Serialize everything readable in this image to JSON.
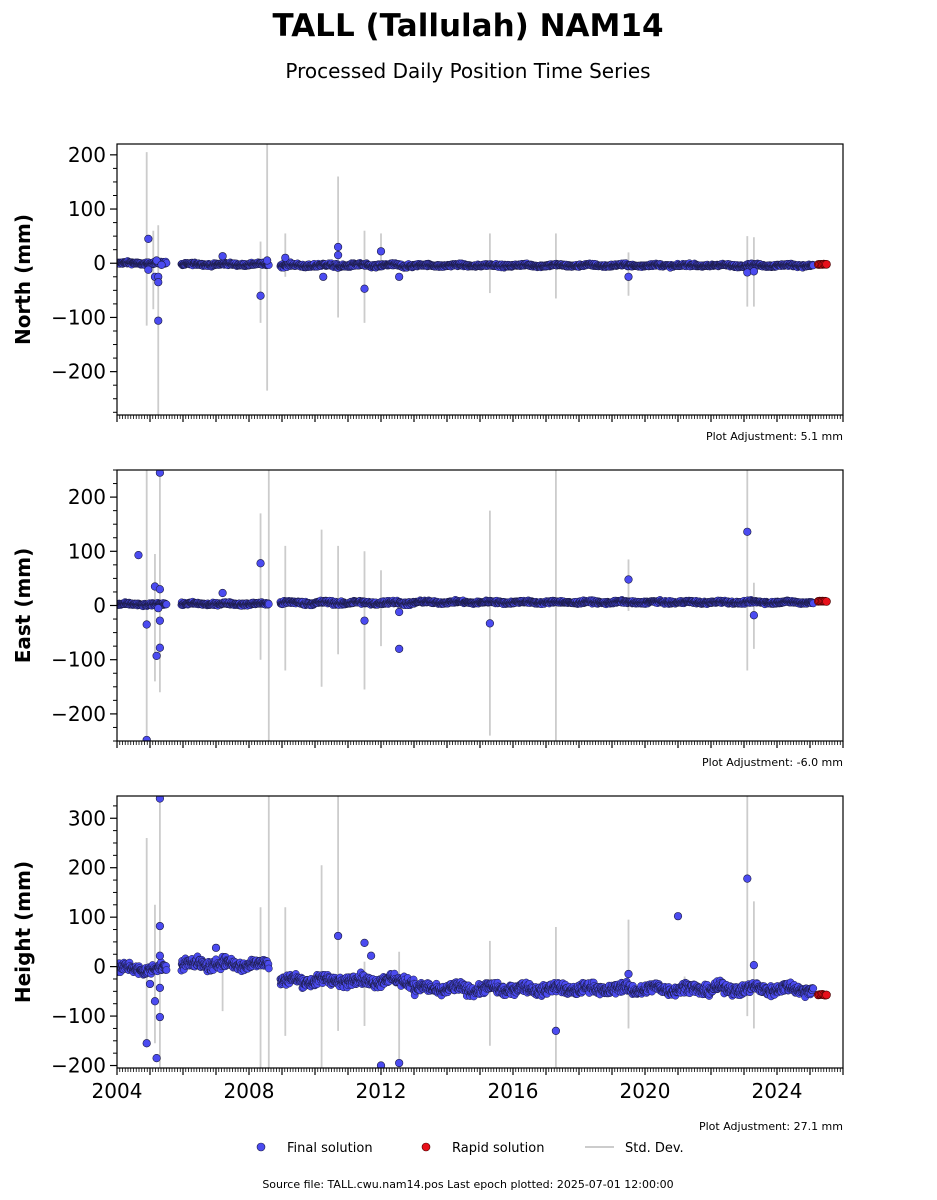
{
  "figure": {
    "title": "TALL (Tallulah) NAM14",
    "subtitle": "Processed Daily Position Time Series",
    "source_note": "Source file: TALL.cwu.nam14.pos  Last epoch plotted: 2025-07-01 12:00:00"
  },
  "legend": {
    "placement": "bottom-center",
    "items": [
      {
        "label": "Final solution",
        "color": "#4b4bf0",
        "marker": "circle"
      },
      {
        "label": "Rapid solution",
        "color": "#e8101a",
        "marker": "circle"
      },
      {
        "label": "Std. Dev.",
        "color": "#cccccc",
        "marker": "line"
      }
    ]
  },
  "colors": {
    "final": "#4b4bf0",
    "final_edge": "#1a1a40",
    "rapid": "#e8101a",
    "rapid_edge": "#400000",
    "stddev": "#cccccc"
  },
  "chart_data": [
    {
      "type": "scatter",
      "name": "north",
      "ylabel": "North (mm)",
      "adjustment": "Plot Adjustment: 5.1 mm",
      "xlim": [
        2004,
        2026
      ],
      "ylim": [
        -280,
        220
      ],
      "yticks": [
        -200,
        -100,
        0,
        100,
        200
      ],
      "ytick_labels": [
        "−200",
        "−100",
        "0",
        "100",
        "200"
      ],
      "dense_segments": [
        [
          2004.0,
          2005.5,
          0,
          3
        ],
        [
          2005.95,
          2008.6,
          -2,
          3
        ],
        [
          2008.95,
          2013.0,
          -4,
          4
        ],
        [
          2013.0,
          2025.1,
          -4,
          3
        ]
      ],
      "rapid_segments": [
        [
          2025.25,
          2025.5,
          -2,
          1
        ]
      ],
      "outliers": [
        {
          "x": 2004.95,
          "y": 45
        },
        {
          "x": 2004.95,
          "y": -12
        },
        {
          "x": 2005.15,
          "y": -25
        },
        {
          "x": 2005.2,
          "y": 5
        },
        {
          "x": 2005.25,
          "y": -25
        },
        {
          "x": 2005.25,
          "y": -35
        },
        {
          "x": 2005.25,
          "y": -106
        },
        {
          "x": 2005.35,
          "y": -3
        },
        {
          "x": 2007.2,
          "y": 13
        },
        {
          "x": 2008.35,
          "y": -60
        },
        {
          "x": 2008.55,
          "y": 5
        },
        {
          "x": 2009.1,
          "y": 10
        },
        {
          "x": 2010.25,
          "y": -25
        },
        {
          "x": 2010.7,
          "y": 30
        },
        {
          "x": 2010.7,
          "y": 15
        },
        {
          "x": 2011.5,
          "y": -47
        },
        {
          "x": 2012.0,
          "y": 22
        },
        {
          "x": 2012.55,
          "y": -25
        },
        {
          "x": 2019.5,
          "y": -25
        },
        {
          "x": 2023.1,
          "y": -17
        },
        {
          "x": 2023.3,
          "y": -15
        }
      ],
      "error_bars": [
        {
          "x": 2004.9,
          "lo": -115,
          "hi": 205
        },
        {
          "x": 2005.1,
          "lo": -85,
          "hi": 60
        },
        {
          "x": 2005.25,
          "lo": -280,
          "hi": 70
        },
        {
          "x": 2008.35,
          "lo": -110,
          "hi": 40
        },
        {
          "x": 2008.55,
          "lo": -235,
          "hi": 220
        },
        {
          "x": 2009.1,
          "lo": -25,
          "hi": 55
        },
        {
          "x": 2010.7,
          "lo": -100,
          "hi": 160
        },
        {
          "x": 2011.5,
          "lo": -110,
          "hi": 60
        },
        {
          "x": 2012.0,
          "lo": -10,
          "hi": 55
        },
        {
          "x": 2015.3,
          "lo": -55,
          "hi": 55
        },
        {
          "x": 2017.3,
          "lo": -65,
          "hi": 55
        },
        {
          "x": 2019.5,
          "lo": -60,
          "hi": 20
        },
        {
          "x": 2023.1,
          "lo": -80,
          "hi": 50
        },
        {
          "x": 2023.3,
          "lo": -80,
          "hi": 48
        }
      ]
    },
    {
      "type": "scatter",
      "name": "east",
      "ylabel": "East (mm)",
      "adjustment": "Plot Adjustment: -6.0 mm",
      "xlim": [
        2004,
        2026
      ],
      "ylim": [
        -250,
        250
      ],
      "yticks": [
        -200,
        -100,
        0,
        100,
        200
      ],
      "ytick_labels": [
        "−200",
        "−100",
        "0",
        "100",
        "200"
      ],
      "dense_segments": [
        [
          2004.0,
          2005.5,
          2,
          3
        ],
        [
          2005.95,
          2008.6,
          3,
          3
        ],
        [
          2008.95,
          2013.0,
          5,
          4
        ],
        [
          2013.0,
          2025.1,
          6,
          3
        ]
      ],
      "rapid_segments": [
        [
          2025.25,
          2025.5,
          8,
          1
        ]
      ],
      "outliers": [
        {
          "x": 2004.65,
          "y": 93
        },
        {
          "x": 2004.9,
          "y": -35
        },
        {
          "x": 2004.9,
          "y": -248
        },
        {
          "x": 2005.15,
          "y": 35
        },
        {
          "x": 2005.2,
          "y": -93
        },
        {
          "x": 2005.25,
          "y": -5
        },
        {
          "x": 2005.3,
          "y": 245
        },
        {
          "x": 2005.3,
          "y": 30
        },
        {
          "x": 2005.3,
          "y": -28
        },
        {
          "x": 2005.3,
          "y": -78
        },
        {
          "x": 2007.2,
          "y": 23
        },
        {
          "x": 2008.35,
          "y": 78
        },
        {
          "x": 2011.5,
          "y": -28
        },
        {
          "x": 2012.55,
          "y": -80
        },
        {
          "x": 2012.55,
          "y": -12
        },
        {
          "x": 2015.3,
          "y": -33
        },
        {
          "x": 2019.5,
          "y": 48
        },
        {
          "x": 2023.1,
          "y": 136
        },
        {
          "x": 2023.3,
          "y": -18
        }
      ],
      "error_bars": [
        {
          "x": 2004.9,
          "lo": -250,
          "hi": 250
        },
        {
          "x": 2005.15,
          "lo": -140,
          "hi": 95
        },
        {
          "x": 2005.3,
          "lo": -160,
          "hi": 250
        },
        {
          "x": 2008.35,
          "lo": -100,
          "hi": 170
        },
        {
          "x": 2008.6,
          "lo": -250,
          "hi": 250
        },
        {
          "x": 2009.1,
          "lo": -120,
          "hi": 110
        },
        {
          "x": 2010.2,
          "lo": -150,
          "hi": 140
        },
        {
          "x": 2010.7,
          "lo": -90,
          "hi": 110
        },
        {
          "x": 2011.5,
          "lo": -155,
          "hi": 100
        },
        {
          "x": 2012.0,
          "lo": -75,
          "hi": 65
        },
        {
          "x": 2015.3,
          "lo": -240,
          "hi": 175
        },
        {
          "x": 2017.3,
          "lo": -250,
          "hi": 250
        },
        {
          "x": 2019.5,
          "lo": -10,
          "hi": 85
        },
        {
          "x": 2023.1,
          "lo": -120,
          "hi": 250
        },
        {
          "x": 2023.3,
          "lo": -80,
          "hi": 42
        }
      ]
    },
    {
      "type": "scatter",
      "name": "height",
      "ylabel": "Height (mm)",
      "adjustment": "Plot Adjustment: 27.1 mm",
      "xlim": [
        2004,
        2026
      ],
      "ylim": [
        -205,
        345
      ],
      "yticks": [
        -200,
        -100,
        0,
        100,
        200,
        300
      ],
      "ytick_labels": [
        "−200",
        "−100",
        "0",
        "100",
        "200",
        "300"
      ],
      "xticks": [
        2004,
        2008,
        2012,
        2016,
        2020,
        2024
      ],
      "xtick_labels": [
        "2004",
        "2008",
        "2012",
        "2016",
        "2020",
        "2024"
      ],
      "dense_segments": [
        [
          2004.0,
          2005.5,
          -5,
          12
        ],
        [
          2005.95,
          2008.6,
          5,
          12
        ],
        [
          2008.95,
          2013.0,
          -28,
          12
        ],
        [
          2013.0,
          2025.1,
          -45,
          12
        ]
      ],
      "rapid_segments": [
        [
          2025.25,
          2025.5,
          -57,
          2
        ]
      ],
      "outliers": [
        {
          "x": 2004.9,
          "y": -155
        },
        {
          "x": 2005.0,
          "y": -35
        },
        {
          "x": 2005.15,
          "y": -70
        },
        {
          "x": 2005.2,
          "y": -185
        },
        {
          "x": 2005.3,
          "y": 340
        },
        {
          "x": 2005.3,
          "y": 82
        },
        {
          "x": 2005.3,
          "y": 22
        },
        {
          "x": 2005.3,
          "y": -43
        },
        {
          "x": 2005.3,
          "y": -102
        },
        {
          "x": 2007.0,
          "y": 38
        },
        {
          "x": 2010.7,
          "y": 62
        },
        {
          "x": 2011.5,
          "y": 48
        },
        {
          "x": 2011.7,
          "y": 22
        },
        {
          "x": 2012.0,
          "y": -200
        },
        {
          "x": 2012.55,
          "y": -195
        },
        {
          "x": 2017.3,
          "y": -130
        },
        {
          "x": 2019.5,
          "y": -15
        },
        {
          "x": 2021.0,
          "y": 102
        },
        {
          "x": 2023.1,
          "y": 178
        },
        {
          "x": 2023.3,
          "y": 3
        }
      ],
      "error_bars": [
        {
          "x": 2004.9,
          "lo": -160,
          "hi": 260
        },
        {
          "x": 2005.15,
          "lo": -155,
          "hi": 125
        },
        {
          "x": 2005.3,
          "lo": -205,
          "hi": 345
        },
        {
          "x": 2007.2,
          "lo": -90,
          "hi": -10
        },
        {
          "x": 2008.35,
          "lo": -205,
          "hi": 120
        },
        {
          "x": 2008.6,
          "lo": -205,
          "hi": 345
        },
        {
          "x": 2009.1,
          "lo": -140,
          "hi": 120
        },
        {
          "x": 2010.2,
          "lo": -205,
          "hi": 205
        },
        {
          "x": 2010.7,
          "lo": -130,
          "hi": 345
        },
        {
          "x": 2011.5,
          "lo": -120,
          "hi": 10
        },
        {
          "x": 2012.55,
          "lo": -205,
          "hi": 30
        },
        {
          "x": 2015.3,
          "lo": -160,
          "hi": 52
        },
        {
          "x": 2017.3,
          "lo": -205,
          "hi": 80
        },
        {
          "x": 2019.5,
          "lo": -125,
          "hi": 95
        },
        {
          "x": 2021.2,
          "lo": -30,
          "hi": -20
        },
        {
          "x": 2023.1,
          "lo": -100,
          "hi": 345
        },
        {
          "x": 2023.3,
          "lo": -125,
          "hi": 132
        }
      ]
    }
  ]
}
